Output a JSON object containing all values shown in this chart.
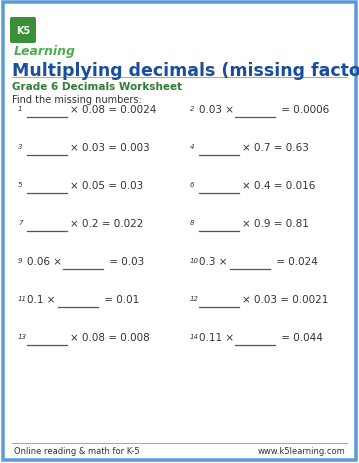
{
  "title": "Multiplying decimals (missing factor)",
  "subtitle": "Grade 6 Decimals Worksheet",
  "instruction": "Find the missing numbers:",
  "title_color": "#1a4d9e",
  "subtitle_color": "#2e7d32",
  "body_color": "#333333",
  "border_color": "#5b9bd5",
  "footer_left": "Online reading & math for K-5",
  "footer_right": "www.k5learning.com",
  "problems": [
    {
      "num": "1",
      "left_fixed": "",
      "blank_left": true,
      "right_fixed": "× 0.08 = 0.0024"
    },
    {
      "num": "2",
      "left_fixed": "0.03 ×",
      "blank_left": false,
      "right_fixed": "= 0.0006"
    },
    {
      "num": "3",
      "left_fixed": "",
      "blank_left": true,
      "right_fixed": "× 0.03 = 0.003"
    },
    {
      "num": "4",
      "left_fixed": "",
      "blank_left": true,
      "right_fixed": "× 0.7 = 0.63"
    },
    {
      "num": "5",
      "left_fixed": "",
      "blank_left": true,
      "right_fixed": "× 0.05 = 0.03"
    },
    {
      "num": "6",
      "left_fixed": "",
      "blank_left": true,
      "right_fixed": "× 0.4 = 0.016"
    },
    {
      "num": "7",
      "left_fixed": "",
      "blank_left": true,
      "right_fixed": "× 0.2 = 0.022"
    },
    {
      "num": "8",
      "left_fixed": "",
      "blank_left": true,
      "right_fixed": "× 0.9 = 0.81"
    },
    {
      "num": "9",
      "left_fixed": "0.06 ×",
      "blank_left": false,
      "right_fixed": "= 0.03"
    },
    {
      "num": "10",
      "left_fixed": "0.3 ×",
      "blank_left": false,
      "right_fixed": "= 0.024"
    },
    {
      "num": "11",
      "left_fixed": "0.1 ×",
      "blank_left": false,
      "right_fixed": "= 0.01"
    },
    {
      "num": "12",
      "left_fixed": "",
      "blank_left": true,
      "right_fixed": "× 0.03 = 0.0021"
    },
    {
      "num": "13",
      "left_fixed": "",
      "blank_left": true,
      "right_fixed": "× 0.08 = 0.008"
    },
    {
      "num": "14",
      "left_fixed": "0.11 ×",
      "blank_left": false,
      "right_fixed": "= 0.044"
    }
  ],
  "page_bg": "#ffffff",
  "inner_bg": "#eef3fa",
  "logo_green": "#4caf50",
  "logo_blue": "#1565c0"
}
